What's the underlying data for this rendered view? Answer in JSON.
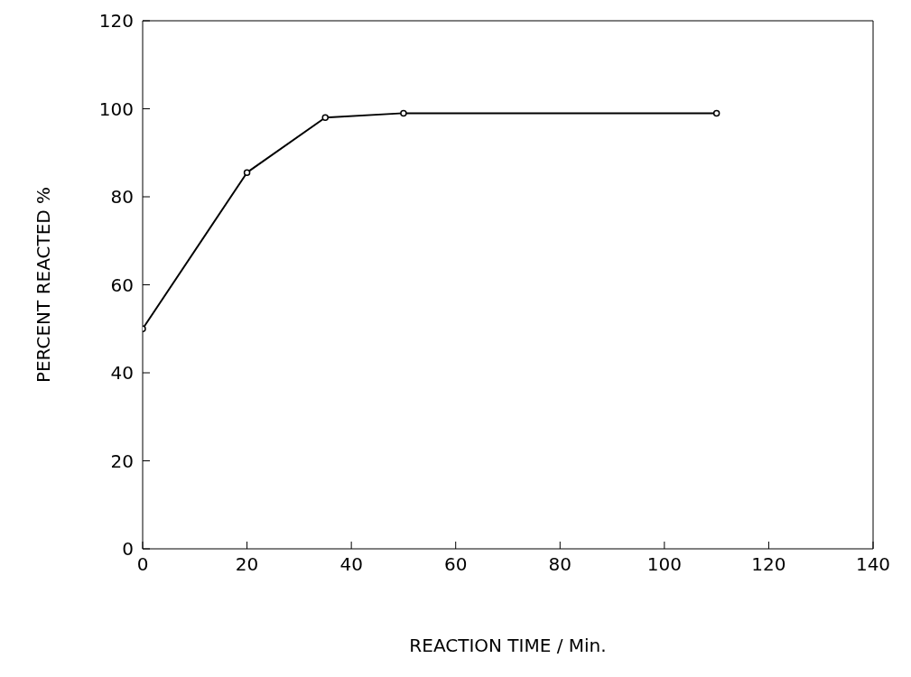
{
  "chart_data": {
    "type": "line",
    "xlabel": "REACTION TIME / Min.",
    "ylabel": "PERCENT REACTED %",
    "x": [
      0,
      20,
      35,
      50,
      110
    ],
    "series": [
      {
        "color": "#000000",
        "values": [
          50,
          85.5,
          98,
          99,
          99
        ]
      }
    ],
    "xlim": [
      0,
      140
    ],
    "xticks": [
      0,
      20,
      40,
      60,
      80,
      100,
      120,
      140
    ],
    "ylim": [
      0,
      120
    ],
    "yticks": [
      0,
      20,
      40,
      60,
      80,
      100,
      120
    ],
    "grid": false,
    "legend": false,
    "marker": "circle",
    "line_style": "solid"
  }
}
